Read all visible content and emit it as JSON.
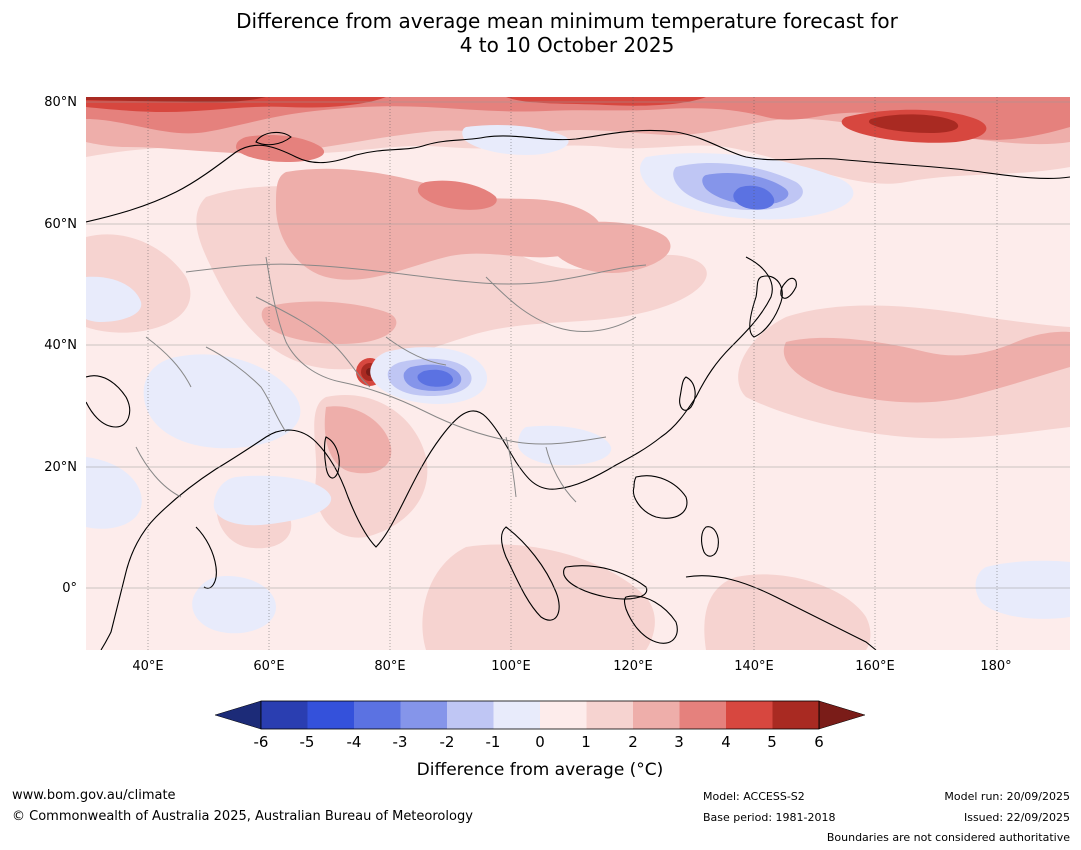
{
  "title": {
    "line1": "Difference from average mean minimum temperature forecast for",
    "line2": "4 to 10 October 2025"
  },
  "map": {
    "region": "Asia",
    "lat_labels": [
      "80°N",
      "60°N",
      "40°N",
      "20°N",
      "0°"
    ],
    "lon_labels": [
      "40°E",
      "60°E",
      "80°E",
      "100°E",
      "120°E",
      "140°E",
      "160°E",
      "180°"
    ],
    "highlighted_features": [
      {
        "name": "warm-anomaly-arctic-east-siberian-sea",
        "value_c": 5
      },
      {
        "name": "warm-anomaly-pamir",
        "value_c": 6
      },
      {
        "name": "cold-anomaly-tibet",
        "value_c": -4
      },
      {
        "name": "cold-anomaly-yakutia",
        "value_c": -3
      }
    ]
  },
  "colorbar": {
    "ticks": [
      "-6",
      "-5",
      "-4",
      "-3",
      "-2",
      "-1",
      "0",
      "1",
      "2",
      "3",
      "4",
      "5",
      "6"
    ],
    "colors": {
      "below": "#1c2b78",
      "n6": "#2a3eb1",
      "n5": "#3451db",
      "n4": "#5b72e2",
      "n3": "#8595ea",
      "n2": "#bfc6f4",
      "n1": "#e8ebfb",
      "p0": "#fdeceb",
      "p1": "#f6d3d0",
      "p2": "#eeaeaa",
      "p3": "#e5817d",
      "p4": "#d7473f",
      "p5": "#a92a22",
      "above": "#7a1c18"
    },
    "label": "Difference from average (°C)"
  },
  "footer": {
    "website": "www.bom.gov.au/climate",
    "copyright": "© Commonwealth of Australia 2025, Australian Bureau of Meteorology",
    "model": "Model: ACCESS-S2",
    "base_period": "Base period: 1981-2018",
    "model_run": "Model run: 20/09/2025",
    "issued": "Issued: 22/09/2025",
    "disclaimer": "Boundaries are not considered authoritative"
  }
}
